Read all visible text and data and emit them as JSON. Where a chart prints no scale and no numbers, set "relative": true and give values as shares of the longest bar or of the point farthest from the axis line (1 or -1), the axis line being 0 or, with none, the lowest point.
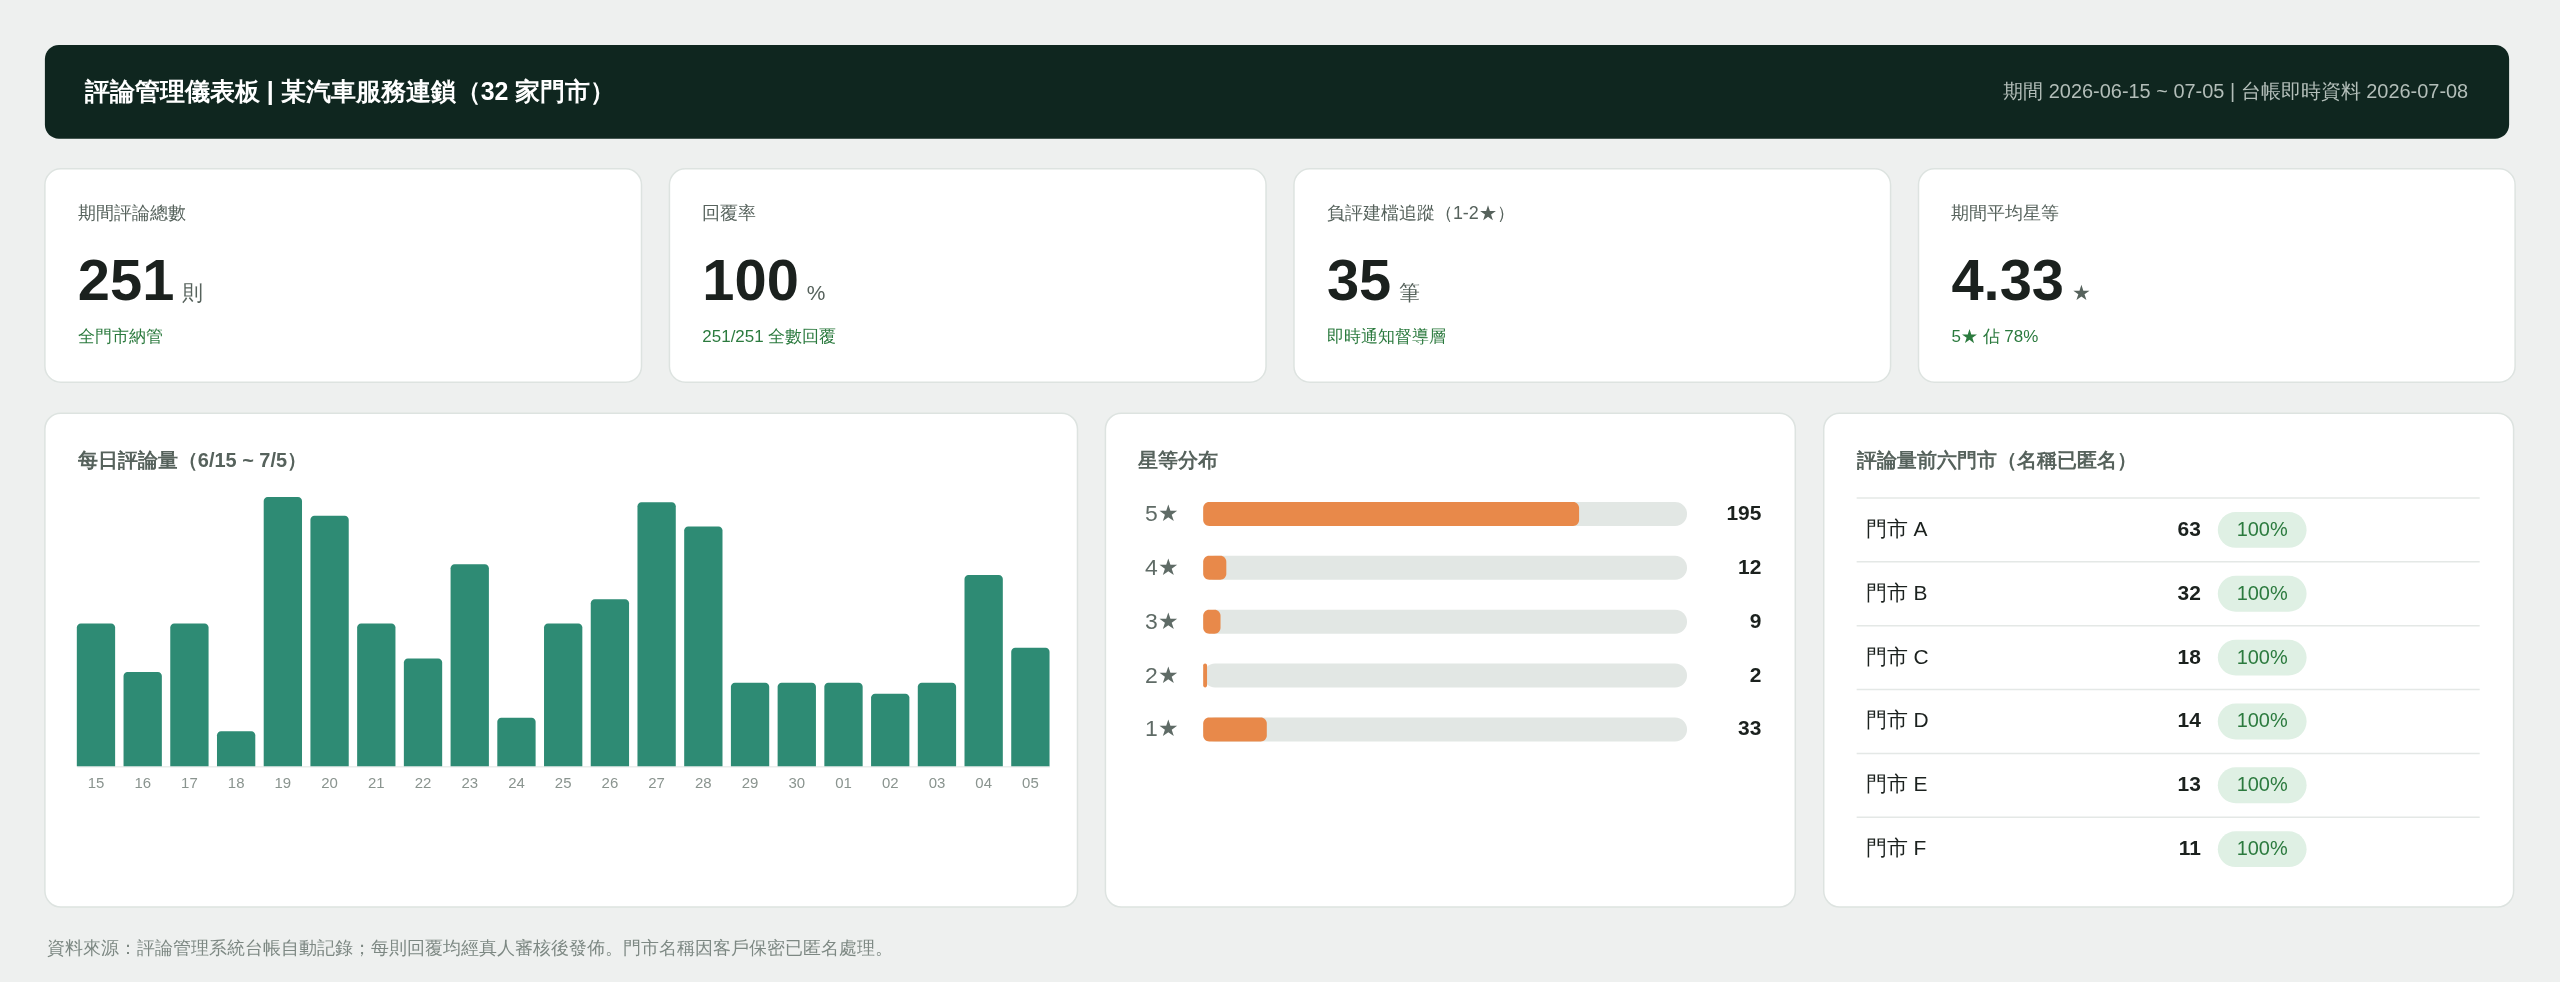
{
  "chart_data": [
    {
      "type": "other",
      "title": "評論管理儀表板 | 某汽車服務連鎖（32 家門市）",
      "subtitle": "期間 2026-06-15 ~ 07-05 | 台帳即時資料 2026-07-08",
      "annotations": [
        "資料來源：評論管理系統台帳自動記錄；每則回覆均經真人審核後發佈。門市名稱因客戶保密已匿名處理。"
      ]
    },
    {
      "type": "other",
      "title": "期間評論總數",
      "values": [
        251
      ],
      "data_labels": true,
      "annotations": [
        "則",
        "全門市納管"
      ]
    },
    {
      "type": "other",
      "title": "回覆率",
      "values": [
        100
      ],
      "data_labels": true,
      "annotations": [
        "%",
        "251/251 全數回覆"
      ]
    },
    {
      "type": "other",
      "title": "負評建檔追蹤（1-2★）",
      "values": [
        35
      ],
      "data_labels": true,
      "annotations": [
        "筆",
        "即時通知督導層"
      ]
    },
    {
      "type": "other",
      "title": "期間平均星等",
      "values": [
        4.33
      ],
      "data_labels": true,
      "annotations": [
        "★",
        "5★ 佔 78%"
      ]
    },
    {
      "type": "bar",
      "title": "每日評論量（6/15 ~ 7/5）",
      "categories": [
        "15",
        "16",
        "17",
        "18",
        "19",
        "20",
        "21",
        "22",
        "23",
        "24",
        "25",
        "26",
        "27",
        "28",
        "29",
        "30",
        "01",
        "02",
        "03",
        "04",
        "05"
      ],
      "values": [
        0.53,
        0.35,
        0.53,
        0.13,
        1,
        0.93,
        0.53,
        0.4,
        0.75,
        0.18,
        0.53,
        0.62,
        0.98,
        0.89,
        0.31,
        0.31,
        0.31,
        0.27,
        0.31,
        0.71,
        0.44
      ],
      "color": "#2e8b74",
      "relative": true
    },
    {
      "type": "bar",
      "orientation": "horizontal",
      "title": "星等分布",
      "categories": [
        "5★",
        "4★",
        "3★",
        "2★",
        "1★"
      ],
      "values": [
        195,
        12,
        9,
        2,
        33
      ],
      "color": "#e8894a",
      "xlim": [
        0,
        251
      ],
      "data_labels": true
    },
    {
      "type": "other",
      "title": "評論量前六門市（名稱已匿名）",
      "categories": [
        "門市 A",
        "門市 B",
        "門市 C",
        "門市 D",
        "門市 E",
        "門市 F"
      ],
      "series": [
        {
          "values": [
            63,
            32,
            18,
            14,
            13,
            11
          ]
        },
        {
          "color": "#dff0e4",
          "values": [
            100,
            100,
            100,
            100,
            100,
            100
          ],
          "value_labels": [
            "100%",
            "100%",
            "100%",
            "100%",
            "100%",
            "100%"
          ]
        }
      ],
      "data_labels": true
    }
  ]
}
